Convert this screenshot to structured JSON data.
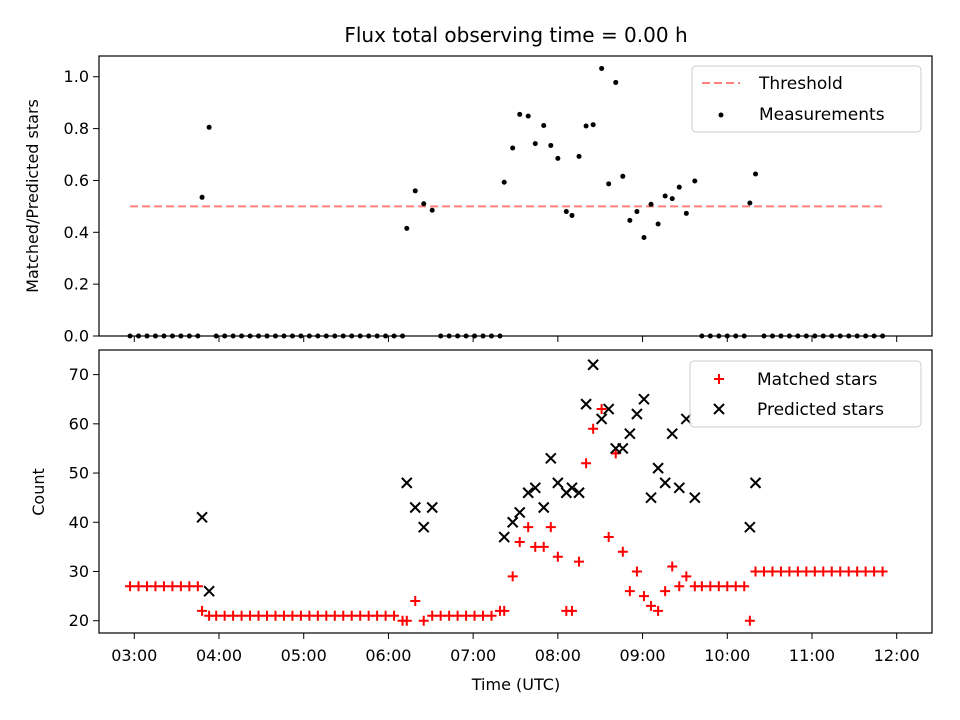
{
  "chart_data": [
    {
      "type": "scatter",
      "title": "Flux total observing time = 0.00 h",
      "ylabel": "Matched/Predicted stars",
      "xlabel": "",
      "ylim": [
        0.0,
        1.08
      ],
      "xlim": [
        "02:35",
        "12:25"
      ],
      "yticks": [
        "0.0",
        "0.2",
        "0.4",
        "0.6",
        "0.8",
        "1.0"
      ],
      "x_tick_labels_shown": false,
      "legend": {
        "position": "top-right",
        "entries": [
          "Threshold",
          "Measurements"
        ]
      },
      "threshold": {
        "name": "Threshold",
        "value": 0.5,
        "x": [
          "02:57",
          "11:50"
        ],
        "color": "#ff7f7f",
        "style": "dashed"
      },
      "series": [
        {
          "name": "Measurements",
          "color": "#000000",
          "marker": "dot",
          "points": [
            [
              "02:57",
              0
            ],
            [
              "03:03",
              0
            ],
            [
              "03:09",
              0
            ],
            [
              "03:15",
              0
            ],
            [
              "03:21",
              0
            ],
            [
              "03:27",
              0
            ],
            [
              "03:33",
              0
            ],
            [
              "03:39",
              0
            ],
            [
              "03:45",
              0
            ],
            [
              "03:48",
              0.535
            ],
            [
              "03:53",
              0.805
            ],
            [
              "03:58",
              0
            ],
            [
              "04:04",
              0
            ],
            [
              "04:10",
              0
            ],
            [
              "04:16",
              0
            ],
            [
              "04:22",
              0
            ],
            [
              "04:28",
              0
            ],
            [
              "04:34",
              0
            ],
            [
              "04:40",
              0
            ],
            [
              "04:46",
              0
            ],
            [
              "04:52",
              0
            ],
            [
              "04:58",
              0
            ],
            [
              "05:04",
              0
            ],
            [
              "05:10",
              0
            ],
            [
              "05:16",
              0
            ],
            [
              "05:22",
              0
            ],
            [
              "05:28",
              0
            ],
            [
              "05:34",
              0
            ],
            [
              "05:40",
              0
            ],
            [
              "05:46",
              0
            ],
            [
              "05:52",
              0
            ],
            [
              "05:58",
              0
            ],
            [
              "06:04",
              0
            ],
            [
              "06:10",
              0
            ],
            [
              "06:13",
              0.415
            ],
            [
              "06:19",
              0.56
            ],
            [
              "06:25",
              0.51
            ],
            [
              "06:31",
              0.485
            ],
            [
              "06:37",
              0
            ],
            [
              "06:43",
              0
            ],
            [
              "06:49",
              0
            ],
            [
              "06:55",
              0
            ],
            [
              "07:01",
              0
            ],
            [
              "07:07",
              0
            ],
            [
              "07:13",
              0
            ],
            [
              "07:19",
              0
            ],
            [
              "07:22",
              0.593
            ],
            [
              "07:28",
              0.725
            ],
            [
              "07:33",
              0.855
            ],
            [
              "07:39",
              0.848
            ],
            [
              "07:44",
              0.742
            ],
            [
              "07:50",
              0.812
            ],
            [
              "07:55",
              0.735
            ],
            [
              "08:00",
              0.685
            ],
            [
              "08:06",
              0.48
            ],
            [
              "08:10",
              0.465
            ],
            [
              "08:15",
              0.693
            ],
            [
              "08:20",
              0.81
            ],
            [
              "08:25",
              0.815
            ],
            [
              "08:31",
              1.032
            ],
            [
              "08:36",
              0.587
            ],
            [
              "08:41",
              0.978
            ],
            [
              "08:46",
              0.616
            ],
            [
              "08:51",
              0.446
            ],
            [
              "08:56",
              0.48
            ],
            [
              "09:01",
              0.38
            ],
            [
              "09:06",
              0.508
            ],
            [
              "09:11",
              0.432
            ],
            [
              "09:16",
              0.54
            ],
            [
              "09:21",
              0.53
            ],
            [
              "09:26",
              0.574
            ],
            [
              "09:31",
              0.473
            ],
            [
              "09:37",
              0.598
            ],
            [
              "09:42",
              0
            ],
            [
              "09:48",
              0
            ],
            [
              "09:54",
              0
            ],
            [
              "10:00",
              0
            ],
            [
              "10:06",
              0
            ],
            [
              "10:12",
              0
            ],
            [
              "10:16",
              0.513
            ],
            [
              "10:20",
              0.625
            ],
            [
              "10:26",
              0
            ],
            [
              "10:32",
              0
            ],
            [
              "10:38",
              0
            ],
            [
              "10:44",
              0
            ],
            [
              "10:50",
              0
            ],
            [
              "10:56",
              0
            ],
            [
              "11:02",
              0
            ],
            [
              "11:08",
              0
            ],
            [
              "11:14",
              0
            ],
            [
              "11:20",
              0
            ],
            [
              "11:26",
              0
            ],
            [
              "11:32",
              0
            ],
            [
              "11:38",
              0
            ],
            [
              "11:44",
              0
            ],
            [
              "11:50",
              0
            ]
          ]
        }
      ]
    },
    {
      "type": "scatter",
      "title": "",
      "ylabel": "Count",
      "xlabel": "Time (UTC)",
      "ylim": [
        17.5,
        75
      ],
      "xlim": [
        "02:35",
        "12:25"
      ],
      "yticks": [
        "20",
        "30",
        "40",
        "50",
        "60",
        "70"
      ],
      "xticks": [
        "03:00",
        "04:00",
        "05:00",
        "06:00",
        "07:00",
        "08:00",
        "09:00",
        "10:00",
        "11:00",
        "12:00"
      ],
      "legend": {
        "position": "top-right",
        "entries": [
          "Matched stars",
          "Predicted stars"
        ]
      },
      "series": [
        {
          "name": "Matched stars",
          "color": "#ff0000",
          "marker": "plus",
          "points": [
            [
              "02:57",
              27
            ],
            [
              "03:03",
              27
            ],
            [
              "03:09",
              27
            ],
            [
              "03:15",
              27
            ],
            [
              "03:21",
              27
            ],
            [
              "03:27",
              27
            ],
            [
              "03:33",
              27
            ],
            [
              "03:39",
              27
            ],
            [
              "03:45",
              27
            ],
            [
              "03:48",
              22
            ],
            [
              "03:53",
              21
            ],
            [
              "03:58",
              21
            ],
            [
              "04:04",
              21
            ],
            [
              "04:10",
              21
            ],
            [
              "04:16",
              21
            ],
            [
              "04:22",
              21
            ],
            [
              "04:28",
              21
            ],
            [
              "04:34",
              21
            ],
            [
              "04:40",
              21
            ],
            [
              "04:46",
              21
            ],
            [
              "04:52",
              21
            ],
            [
              "04:58",
              21
            ],
            [
              "05:04",
              21
            ],
            [
              "05:10",
              21
            ],
            [
              "05:16",
              21
            ],
            [
              "05:22",
              21
            ],
            [
              "05:28",
              21
            ],
            [
              "05:34",
              21
            ],
            [
              "05:40",
              21
            ],
            [
              "05:46",
              21
            ],
            [
              "05:52",
              21
            ],
            [
              "05:58",
              21
            ],
            [
              "06:04",
              21
            ],
            [
              "06:10",
              20
            ],
            [
              "06:13",
              20
            ],
            [
              "06:19",
              24
            ],
            [
              "06:25",
              20
            ],
            [
              "06:31",
              21
            ],
            [
              "06:37",
              21
            ],
            [
              "06:43",
              21
            ],
            [
              "06:49",
              21
            ],
            [
              "06:55",
              21
            ],
            [
              "07:01",
              21
            ],
            [
              "07:07",
              21
            ],
            [
              "07:13",
              21
            ],
            [
              "07:19",
              22
            ],
            [
              "07:22",
              22
            ],
            [
              "07:28",
              29
            ],
            [
              "07:33",
              36
            ],
            [
              "07:39",
              39
            ],
            [
              "07:44",
              35
            ],
            [
              "07:50",
              35
            ],
            [
              "07:55",
              39
            ],
            [
              "08:00",
              33
            ],
            [
              "08:06",
              22
            ],
            [
              "08:10",
              22
            ],
            [
              "08:15",
              32
            ],
            [
              "08:20",
              52
            ],
            [
              "08:25",
              59
            ],
            [
              "08:31",
              63
            ],
            [
              "08:36",
              37
            ],
            [
              "08:41",
              54
            ],
            [
              "08:46",
              34
            ],
            [
              "08:51",
              26
            ],
            [
              "08:56",
              30
            ],
            [
              "09:01",
              25
            ],
            [
              "09:06",
              23
            ],
            [
              "09:11",
              22
            ],
            [
              "09:16",
              26
            ],
            [
              "09:21",
              31
            ],
            [
              "09:26",
              27
            ],
            [
              "09:31",
              29
            ],
            [
              "09:37",
              27
            ],
            [
              "09:42",
              27
            ],
            [
              "09:48",
              27
            ],
            [
              "09:54",
              27
            ],
            [
              "10:00",
              27
            ],
            [
              "10:06",
              27
            ],
            [
              "10:12",
              27
            ],
            [
              "10:16",
              20
            ],
            [
              "10:20",
              30
            ],
            [
              "10:26",
              30
            ],
            [
              "10:32",
              30
            ],
            [
              "10:38",
              30
            ],
            [
              "10:44",
              30
            ],
            [
              "10:50",
              30
            ],
            [
              "10:56",
              30
            ],
            [
              "11:02",
              30
            ],
            [
              "11:08",
              30
            ],
            [
              "11:14",
              30
            ],
            [
              "11:20",
              30
            ],
            [
              "11:26",
              30
            ],
            [
              "11:32",
              30
            ],
            [
              "11:38",
              30
            ],
            [
              "11:44",
              30
            ],
            [
              "11:50",
              30
            ]
          ]
        },
        {
          "name": "Predicted stars",
          "color": "#000000",
          "marker": "x",
          "points": [
            [
              "03:48",
              41
            ],
            [
              "03:53",
              26
            ],
            [
              "06:13",
              48
            ],
            [
              "06:19",
              43
            ],
            [
              "06:25",
              39
            ],
            [
              "06:31",
              43
            ],
            [
              "07:22",
              37
            ],
            [
              "07:28",
              40
            ],
            [
              "07:33",
              42
            ],
            [
              "07:39",
              46
            ],
            [
              "07:44",
              47
            ],
            [
              "07:50",
              43
            ],
            [
              "07:55",
              53
            ],
            [
              "08:00",
              48
            ],
            [
              "08:06",
              46
            ],
            [
              "08:10",
              47
            ],
            [
              "08:15",
              46
            ],
            [
              "08:20",
              64
            ],
            [
              "08:25",
              72
            ],
            [
              "08:31",
              61
            ],
            [
              "08:36",
              63
            ],
            [
              "08:41",
              55
            ],
            [
              "08:46",
              55
            ],
            [
              "08:51",
              58
            ],
            [
              "08:56",
              62
            ],
            [
              "09:01",
              65
            ],
            [
              "09:06",
              45
            ],
            [
              "09:11",
              51
            ],
            [
              "09:16",
              48
            ],
            [
              "09:21",
              58
            ],
            [
              "09:26",
              47
            ],
            [
              "09:31",
              61
            ],
            [
              "09:37",
              45
            ],
            [
              "10:16",
              39
            ],
            [
              "10:20",
              48
            ]
          ]
        }
      ]
    }
  ]
}
